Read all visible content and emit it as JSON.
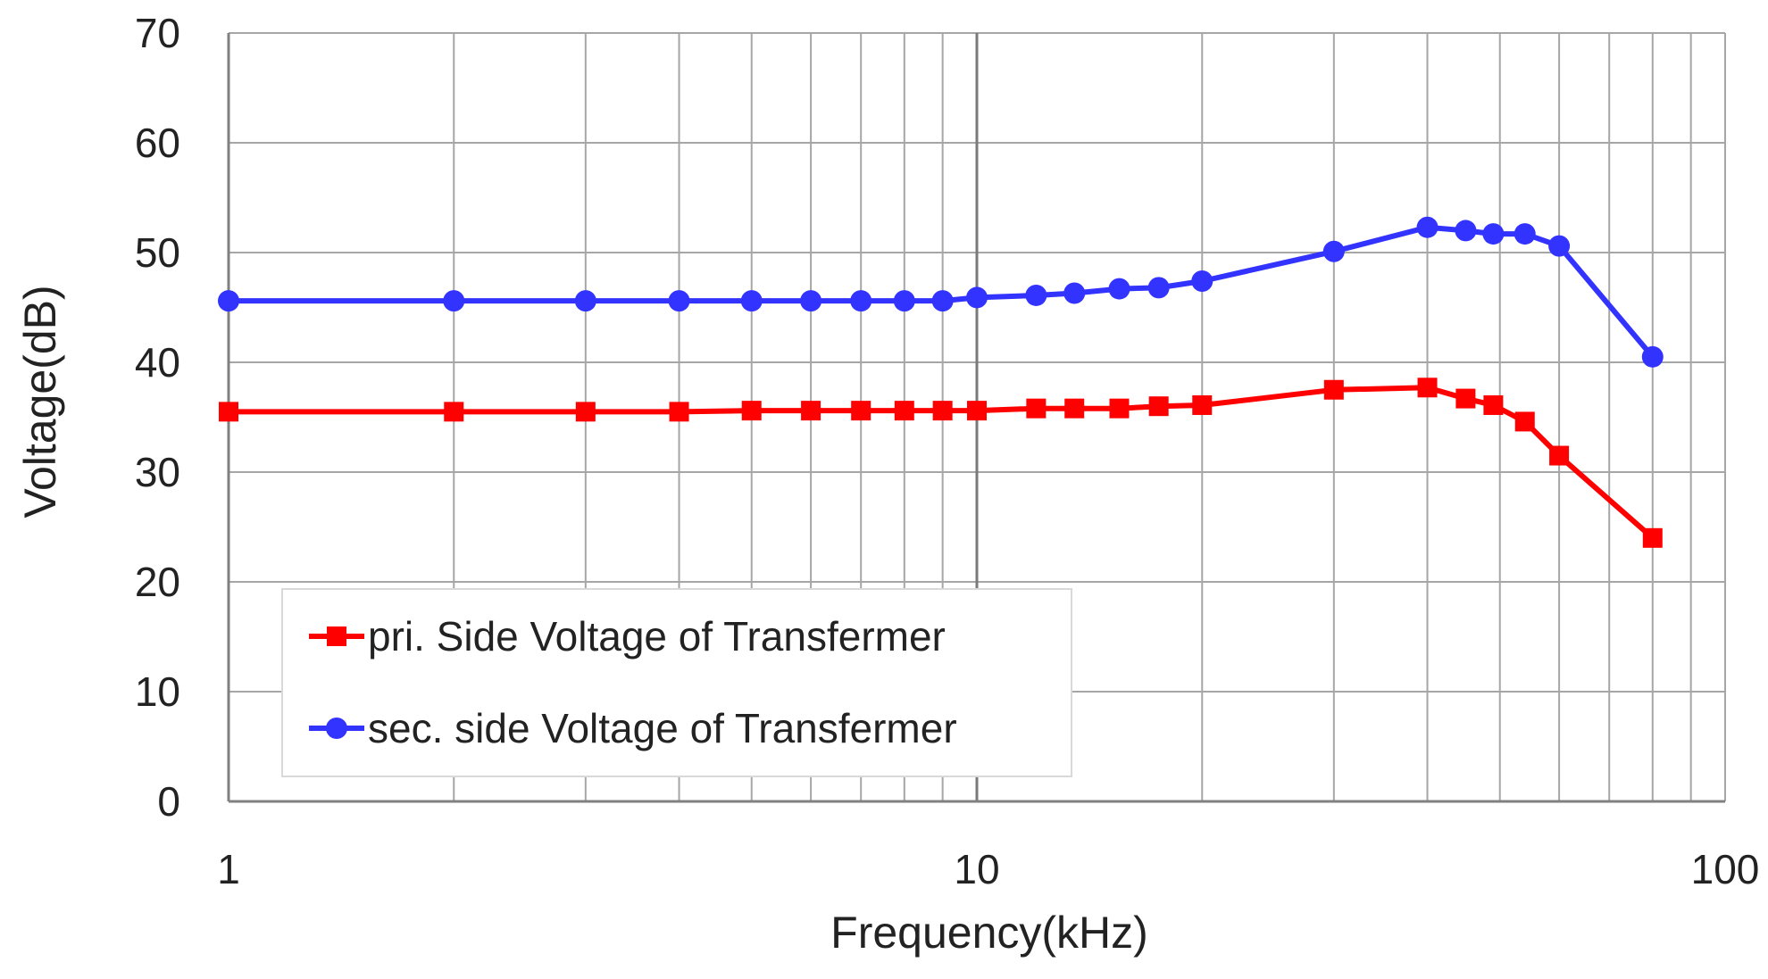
{
  "chart_data": {
    "type": "line",
    "xscale": "log",
    "xlabel": "Frequency(kHz)",
    "ylabel": "Voltage(dB)",
    "xlim": [
      1,
      100
    ],
    "ylim": [
      0,
      70
    ],
    "x_ticks": [
      1,
      10,
      100
    ],
    "y_ticks": [
      0,
      10,
      20,
      30,
      40,
      50,
      60,
      70
    ],
    "x_tick_labels": [
      "1",
      "10",
      "100"
    ],
    "y_tick_labels": [
      "0",
      "10",
      "20",
      "30",
      "40",
      "50",
      "60",
      "70"
    ],
    "grid": true,
    "legend_position": "bottom-left",
    "series": [
      {
        "name": "pri. Side Voltage of Transfermer",
        "color": "#ff0000",
        "marker": "square",
        "x": [
          1,
          2,
          3,
          4,
          5,
          6,
          7,
          8,
          9,
          10,
          12,
          13.5,
          15.5,
          17.5,
          20,
          30,
          40,
          45,
          49,
          54,
          60,
          80
        ],
        "y": [
          35.5,
          35.5,
          35.5,
          35.5,
          35.6,
          35.6,
          35.6,
          35.6,
          35.6,
          35.6,
          35.8,
          35.8,
          35.8,
          36.0,
          36.1,
          37.5,
          37.7,
          36.7,
          36.1,
          34.6,
          31.5,
          24.0
        ]
      },
      {
        "name": "sec. side Voltage of Transfermer",
        "color": "#3333ff",
        "marker": "circle",
        "x": [
          1,
          2,
          3,
          4,
          5,
          6,
          7,
          8,
          9,
          10,
          12,
          13.5,
          15.5,
          17.5,
          20,
          30,
          40,
          45,
          49,
          54,
          60,
          80
        ],
        "y": [
          45.6,
          45.6,
          45.6,
          45.6,
          45.6,
          45.6,
          45.6,
          45.6,
          45.6,
          45.9,
          46.1,
          46.3,
          46.7,
          46.8,
          47.4,
          50.1,
          52.3,
          52.0,
          51.7,
          51.7,
          50.6,
          40.5
        ]
      }
    ]
  }
}
